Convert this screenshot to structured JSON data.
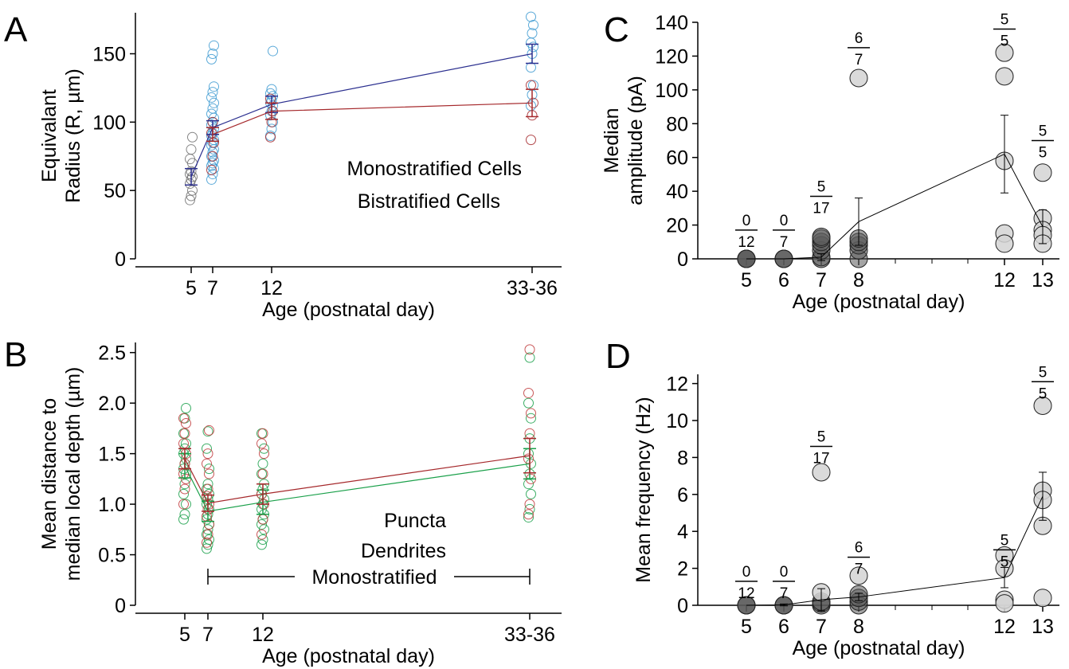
{
  "colors": {
    "mono": "#2b2f8f",
    "bi": "#a5282b",
    "p5": "#3a3a3a",
    "cellblue": "#3d9ad1",
    "cellgrey": "#707070",
    "puncta": "#1aa04a",
    "dendrite": "#c0393b",
    "bubble_fill": "#d4d4d4",
    "bubble_dark": "#595959"
  },
  "panels": {
    "A": {
      "letter": "A"
    },
    "B": {
      "letter": "B"
    },
    "C": {
      "letter": "C"
    },
    "D": {
      "letter": "D"
    }
  },
  "chart_data": [
    {
      "id": "A",
      "type": "scatter",
      "xlabel": "Age (postnatal day)",
      "ylabel": [
        "Equivalant",
        "Radius (R, µm)"
      ],
      "xticks": [
        {
          "x": 5,
          "label": "5"
        },
        {
          "x": 7,
          "label": "7"
        },
        {
          "x": 12,
          "label": "12"
        },
        {
          "x": 33,
          "label": "33-36"
        }
      ],
      "yticks": [
        0,
        50,
        100,
        150
      ],
      "ylim": [
        0,
        180
      ],
      "legend": [
        {
          "name": "Monostratified Cells",
          "color": "#2b2f8f"
        },
        {
          "name": "Bistratified Cells",
          "color": "#a5282b"
        }
      ],
      "points": [
        {
          "x": 5,
          "ys": [
            43,
            46,
            50,
            55,
            58,
            60,
            62,
            64,
            70,
            73,
            80,
            89
          ],
          "color": "#707070"
        },
        {
          "x": 7,
          "ys": [
            58,
            62,
            66,
            68,
            70,
            72,
            75,
            78,
            80,
            83,
            85,
            87,
            90,
            92,
            95,
            98,
            100,
            103,
            106,
            110,
            114,
            118,
            122,
            126,
            146,
            150,
            156
          ],
          "color": "#3d9ad1"
        },
        {
          "x": 7,
          "ys": [
            65,
            75,
            85,
            92,
            100
          ],
          "color": "#a5282b"
        },
        {
          "x": 12,
          "ys": [
            90,
            95,
            100,
            105,
            108,
            112,
            114,
            116,
            119,
            121,
            124,
            152
          ],
          "color": "#3d9ad1"
        },
        {
          "x": 12,
          "ys": [
            89,
            100,
            108,
            117
          ],
          "color": "#a5282b"
        },
        {
          "x": 33,
          "ys": [
            112,
            120,
            127,
            140,
            150,
            155,
            158,
            165,
            171,
            177
          ],
          "color": "#3d9ad1"
        },
        {
          "x": 33,
          "ys": [
            87,
            105,
            114,
            127
          ],
          "color": "#a5282b"
        }
      ],
      "series": [
        {
          "name": "Monostratified Cells",
          "color": "#2b2f8f",
          "x": [
            5,
            7,
            12,
            33
          ],
          "y": [
            60,
            96,
            113,
            150
          ],
          "err": [
            6,
            5,
            6,
            7
          ]
        },
        {
          "name": "Bistratified Cells",
          "color": "#a5282b",
          "x": [
            7,
            12,
            33
          ],
          "y": [
            91,
            108,
            114
          ],
          "err": [
            5,
            6,
            10
          ]
        }
      ]
    },
    {
      "id": "B",
      "type": "scatter",
      "xlabel": "Age (postnatal day)",
      "ylabel": [
        "Mean distance to",
        "median local depth (µm)"
      ],
      "xticks": [
        {
          "x": 5,
          "label": "5"
        },
        {
          "x": 7,
          "label": "7"
        },
        {
          "x": 12,
          "label": "12"
        },
        {
          "x": 33,
          "label": "33-36"
        }
      ],
      "yticks": [
        {
          "v": 0,
          "label": "0"
        },
        {
          "v": 0.5,
          "label": "0.5"
        },
        {
          "v": 1.0,
          "label": "1.0"
        },
        {
          "v": 1.5,
          "label": "1.5"
        },
        {
          "v": 2.0,
          "label": "2.0"
        },
        {
          "v": 2.5,
          "label": "2.5"
        }
      ],
      "ylim": [
        0,
        2.6
      ],
      "legend": [
        {
          "name": "Puncta",
          "color": "#1aa04a"
        },
        {
          "name": "Dendrites",
          "color": "#c0393b"
        }
      ],
      "bracket_label": "Monostratified",
      "points": [
        {
          "x": 5,
          "ys": [
            0.85,
            0.9,
            1.0,
            1.1,
            1.2,
            1.3,
            1.35,
            1.4,
            1.45,
            1.5,
            1.55,
            1.6,
            1.7,
            1.85,
            1.95
          ],
          "color": "#1aa04a"
        },
        {
          "x": 5,
          "ys": [
            1.0,
            1.15,
            1.25,
            1.3,
            1.4,
            1.5,
            1.6,
            1.7,
            1.8,
            1.85
          ],
          "color": "#c0393b"
        },
        {
          "x": 7,
          "ys": [
            0.56,
            0.6,
            0.65,
            0.7,
            0.75,
            0.8,
            0.85,
            0.9,
            0.95,
            1.0,
            1.05,
            1.1,
            1.15,
            1.2,
            1.35,
            1.55,
            1.72
          ],
          "color": "#1aa04a"
        },
        {
          "x": 7,
          "ys": [
            0.62,
            0.7,
            0.8,
            0.88,
            0.95,
            1.0,
            1.08,
            1.15,
            1.3,
            1.4,
            1.5,
            1.73
          ],
          "color": "#c0393b"
        },
        {
          "x": 12,
          "ys": [
            0.6,
            0.65,
            0.75,
            0.8,
            0.85,
            0.9,
            0.95,
            1.0,
            1.05,
            1.1,
            1.15,
            1.2,
            1.3,
            1.4,
            1.55,
            1.7
          ],
          "color": "#1aa04a"
        },
        {
          "x": 12,
          "ys": [
            0.7,
            0.85,
            1.0,
            1.1,
            1.3,
            1.5,
            1.6,
            1.7
          ],
          "color": "#c0393b"
        },
        {
          "x": 33,
          "ys": [
            0.87,
            0.95,
            1.1,
            1.2,
            1.3,
            1.4,
            1.5,
            1.65,
            1.85,
            2.0,
            2.45
          ],
          "color": "#1aa04a"
        },
        {
          "x": 33,
          "ys": [
            0.9,
            1.0,
            1.25,
            1.45,
            1.7,
            1.9,
            2.1,
            2.53
          ],
          "color": "#c0393b"
        }
      ],
      "series": [
        {
          "name": "Puncta",
          "color": "#1aa04a",
          "x": [
            5,
            7,
            12,
            33
          ],
          "y": [
            1.38,
            0.93,
            1.02,
            1.4
          ],
          "err": [
            0.12,
            0.1,
            0.12,
            0.15
          ]
        },
        {
          "name": "Dendrites",
          "color": "#a5282b",
          "x": [
            5,
            7,
            12,
            33
          ],
          "y": [
            1.45,
            1.01,
            1.1,
            1.48
          ],
          "err": [
            0.1,
            0.08,
            0.1,
            0.17
          ]
        }
      ]
    },
    {
      "id": "C",
      "type": "scatter",
      "xlabel": "Age (postnatal day)",
      "ylabel": [
        "Median",
        "amplitude (pA)"
      ],
      "xticks": [
        {
          "x": 5,
          "label": "5"
        },
        {
          "x": 6,
          "label": "6"
        },
        {
          "x": 7,
          "label": "7"
        },
        {
          "x": 8,
          "label": "8"
        },
        {
          "x": 12,
          "label": "12"
        },
        {
          "x": 13,
          "label": "13"
        }
      ],
      "minor_ticks": [
        9,
        10,
        11
      ],
      "yticks": [
        0,
        20,
        40,
        60,
        80,
        100,
        120,
        140
      ],
      "ylim": [
        0,
        140
      ],
      "fractions": [
        {
          "x": 5,
          "y": 17,
          "num": "0",
          "den": "12"
        },
        {
          "x": 6,
          "y": 17,
          "num": "0",
          "den": "7"
        },
        {
          "x": 7,
          "y": 37,
          "num": "5",
          "den": "17"
        },
        {
          "x": 8,
          "y": 125,
          "num": "6",
          "den": "7"
        },
        {
          "x": 12,
          "y": 136,
          "num": "5",
          "den": "5"
        },
        {
          "x": 13,
          "y": 70,
          "num": "5",
          "den": "5"
        }
      ],
      "bubbles": [
        {
          "x": 5,
          "ys": [
            0,
            0,
            0,
            0
          ],
          "dark": true
        },
        {
          "x": 6,
          "ys": [
            0,
            0,
            0
          ],
          "dark": true
        },
        {
          "x": 7,
          "ys": [
            0,
            1,
            5,
            8,
            10,
            12,
            13
          ],
          "dark": true
        },
        {
          "x": 8,
          "ys": [
            0,
            5,
            8,
            10,
            12
          ],
          "dark": true
        },
        {
          "x": 8,
          "ys": [
            107
          ],
          "dark": false
        },
        {
          "x": 12,
          "ys": [
            122,
            108,
            58,
            15,
            9
          ],
          "dark": false
        },
        {
          "x": 13,
          "ys": [
            51,
            24,
            17,
            14,
            9
          ],
          "dark": false
        }
      ],
      "series": [
        {
          "x": [
            5,
            6,
            7,
            8,
            12,
            13
          ],
          "y": [
            0,
            0,
            1,
            22,
            62,
            19
          ],
          "err": [
            0,
            0,
            2,
            14,
            23,
            10
          ]
        }
      ]
    },
    {
      "id": "D",
      "type": "scatter",
      "xlabel": "Age (postnatal day)",
      "ylabel": [
        "Mean frequency (Hz)"
      ],
      "xticks": [
        {
          "x": 5,
          "label": "5"
        },
        {
          "x": 6,
          "label": "6"
        },
        {
          "x": 7,
          "label": "7"
        },
        {
          "x": 8,
          "label": "8"
        },
        {
          "x": 12,
          "label": "12"
        },
        {
          "x": 13,
          "label": "13"
        }
      ],
      "minor_ticks": [
        9,
        10,
        11
      ],
      "yticks": [
        0,
        2,
        4,
        6,
        8,
        10,
        12
      ],
      "ylim": [
        0,
        12.5
      ],
      "fractions": [
        {
          "x": 5,
          "y": 1.3,
          "num": "0",
          "den": "12"
        },
        {
          "x": 6,
          "y": 1.3,
          "num": "0",
          "den": "7"
        },
        {
          "x": 7,
          "y": 8.6,
          "num": "5",
          "den": "17"
        },
        {
          "x": 8,
          "y": 2.6,
          "num": "6",
          "den": "7"
        },
        {
          "x": 12,
          "y": 3.0,
          "num": "5",
          "den": "5"
        },
        {
          "x": 13,
          "y": 12.1,
          "num": "5",
          "den": "5"
        }
      ],
      "bubbles": [
        {
          "x": 5,
          "ys": [
            0,
            0,
            0
          ],
          "dark": true
        },
        {
          "x": 6,
          "ys": [
            0,
            0,
            0
          ],
          "dark": true
        },
        {
          "x": 7,
          "ys": [
            0,
            0.1,
            0.2
          ],
          "dark": true
        },
        {
          "x": 7,
          "ys": [
            7.2,
            0.7
          ],
          "dark": false
        },
        {
          "x": 8,
          "ys": [
            0,
            0.2,
            0.4,
            0.6
          ],
          "dark": true
        },
        {
          "x": 8,
          "ys": [
            1.6
          ],
          "dark": false
        },
        {
          "x": 12,
          "ys": [
            2.7,
            2.0,
            0.3,
            0.1
          ],
          "dark": false
        },
        {
          "x": 13,
          "ys": [
            10.8,
            6.2,
            5.7,
            4.3,
            0.4
          ],
          "dark": false
        }
      ],
      "series": [
        {
          "x": [
            5,
            6,
            7,
            8,
            12,
            13
          ],
          "y": [
            0,
            0.02,
            0.3,
            0.45,
            1.5,
            5.9
          ],
          "err": [
            0,
            0.05,
            0.6,
            0.2,
            0.55,
            1.3
          ]
        }
      ]
    }
  ]
}
